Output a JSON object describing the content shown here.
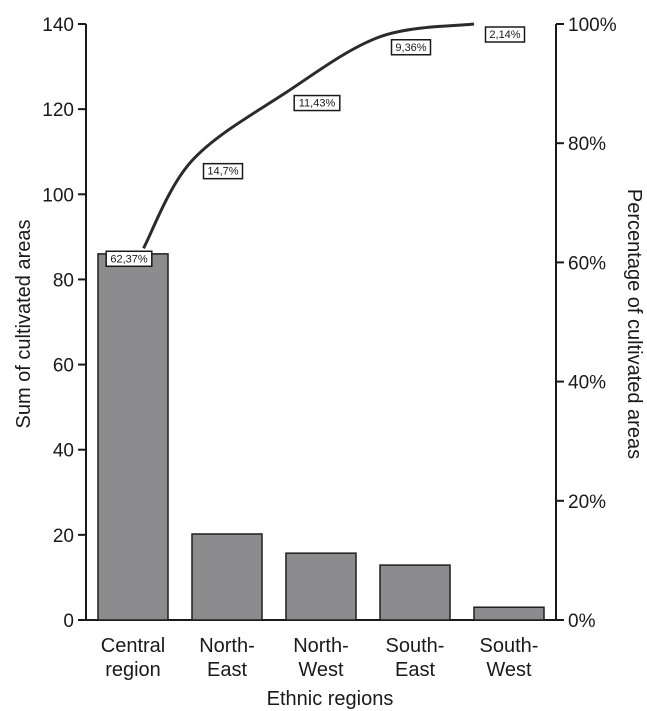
{
  "chart_data": {
    "type": "bar",
    "xlabel": "Ethnic regions",
    "ylabel": "Sum of cultivated areas",
    "y2label": "Percentage of cultivated areas",
    "categories": [
      {
        "line1": "Central",
        "line2": "region"
      },
      {
        "line1": "North-",
        "line2": "East"
      },
      {
        "line1": "North-",
        "line2": "West"
      },
      {
        "line1": "South-",
        "line2": "East"
      },
      {
        "line1": "South-",
        "line2": "West"
      }
    ],
    "series": [
      {
        "type": "bar",
        "values": [
          86,
          20.2,
          15.7,
          12.9,
          3.0
        ],
        "color": "#8c8c8f"
      },
      {
        "type": "line",
        "axis": "right",
        "cumulative_percent": [
          62.37,
          77.07,
          88.5,
          97.86,
          100
        ],
        "labels": [
          "62,37%",
          "14,7%",
          "11,43%",
          "9,36%",
          "2,14%"
        ]
      }
    ],
    "ylim": [
      0,
      140
    ],
    "yticks": [
      "0",
      "20",
      "40",
      "60",
      "80",
      "100",
      "120",
      "140"
    ],
    "y2lim": [
      0,
      100
    ],
    "y2ticks": [
      "0%",
      "20%",
      "40%",
      "60%",
      "80%",
      "100%"
    ],
    "grid": false
  }
}
